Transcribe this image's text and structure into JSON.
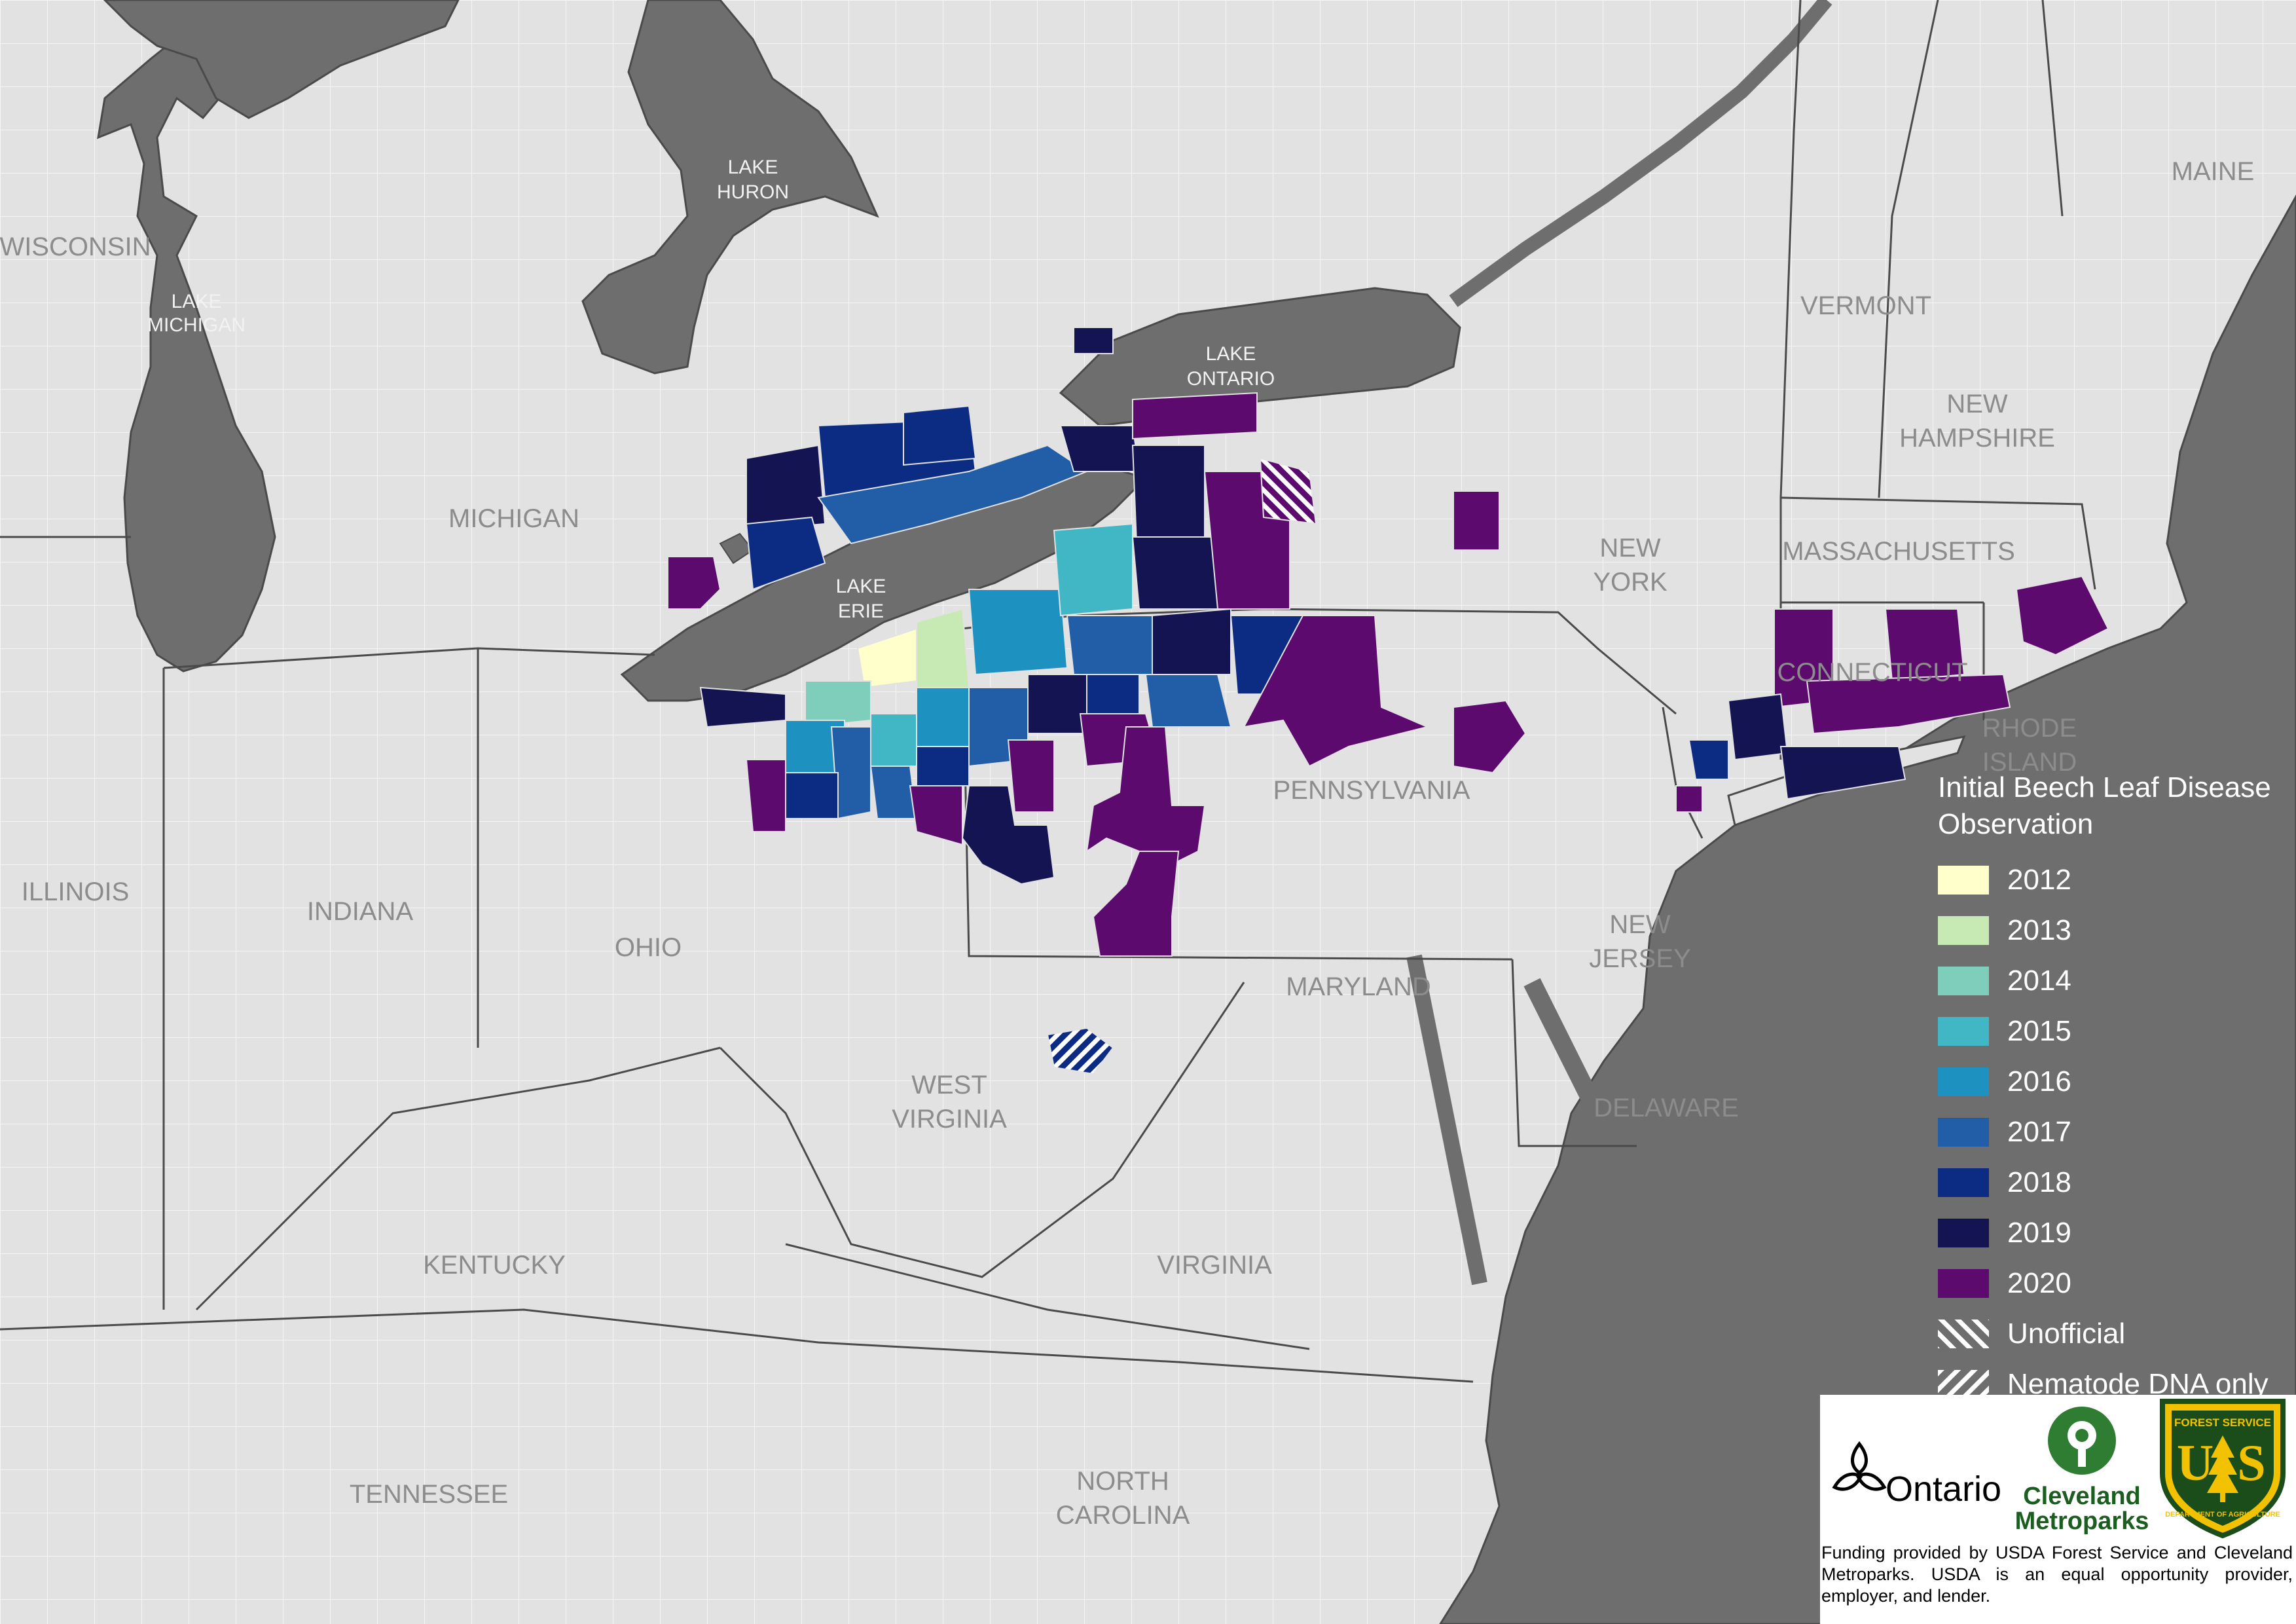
{
  "lakes": [
    {
      "id": "michigan",
      "lines": [
        "LAKE",
        "MICHIGAN"
      ]
    },
    {
      "id": "huron",
      "lines": [
        "LAKE",
        "HURON"
      ]
    },
    {
      "id": "ontario",
      "lines": [
        "LAKE",
        "ONTARIO"
      ]
    },
    {
      "id": "erie",
      "lines": [
        "LAKE",
        "ERIE"
      ]
    }
  ],
  "states": {
    "wisconsin": [
      "WISCONSIN"
    ],
    "michigan": [
      "MICHIGAN"
    ],
    "illinois": [
      "ILLINOIS"
    ],
    "indiana": [
      "INDIANA"
    ],
    "ohio": [
      "OHIO"
    ],
    "kentucky": [
      "KENTUCKY"
    ],
    "tennessee": [
      "TENNESSEE"
    ],
    "north_carolina": [
      "NORTH",
      "CAROLINA"
    ],
    "virginia": [
      "VIRGINIA"
    ],
    "west_virginia": [
      "WEST",
      "VIRGINIA"
    ],
    "maryland": [
      "MARYLAND"
    ],
    "delaware": [
      "DELAWARE"
    ],
    "new_jersey": [
      "NEW",
      "JERSEY"
    ],
    "pennsylvania": [
      "PENNSYLVANIA"
    ],
    "new_york": [
      "NEW",
      "YORK"
    ],
    "vermont": [
      "VERMONT"
    ],
    "new_hampshire": [
      "NEW",
      "HAMPSHIRE"
    ],
    "maine": [
      "MAINE"
    ],
    "massachusetts": [
      "MASSACHUSETTS"
    ],
    "connecticut": [
      "CONNECTICUT"
    ],
    "rhode_island": [
      "RHODE",
      "ISLAND"
    ]
  },
  "legend": {
    "title": "Initial Beech Leaf Disease Observation",
    "items": [
      {
        "label": "2012",
        "color": "#ffffcc"
      },
      {
        "label": "2013",
        "color": "#c7e9b4"
      },
      {
        "label": "2014",
        "color": "#7fcdbb"
      },
      {
        "label": "2015",
        "color": "#41b6c4"
      },
      {
        "label": "2016",
        "color": "#1d91c0"
      },
      {
        "label": "2017",
        "color": "#225ea8"
      },
      {
        "label": "2018",
        "color": "#0c2c84"
      },
      {
        "label": "2019",
        "color": "#141452"
      },
      {
        "label": "2020",
        "color": "#5c0a6e"
      }
    ],
    "unofficial": "Unofficial",
    "nematode": "Nematode DNA only"
  },
  "logos": {
    "ontario": "Ontario",
    "cleveland_1": "Cleveland",
    "cleveland_2": "Metroparks",
    "usfs_top": "FOREST SERVICE",
    "usfs_bottom": "DEPARTMENT OF AGRICULTURE"
  },
  "funding": "Funding provided by USDA Forest Service and Cleveland Metroparks. USDA is an equal opportunity provider, employer, and lender.",
  "colors": {
    "land": "#e2e2e2",
    "water": "#6e6e6e",
    "county_border": "#f4f4f4",
    "state_border": "#4a4a4a"
  }
}
